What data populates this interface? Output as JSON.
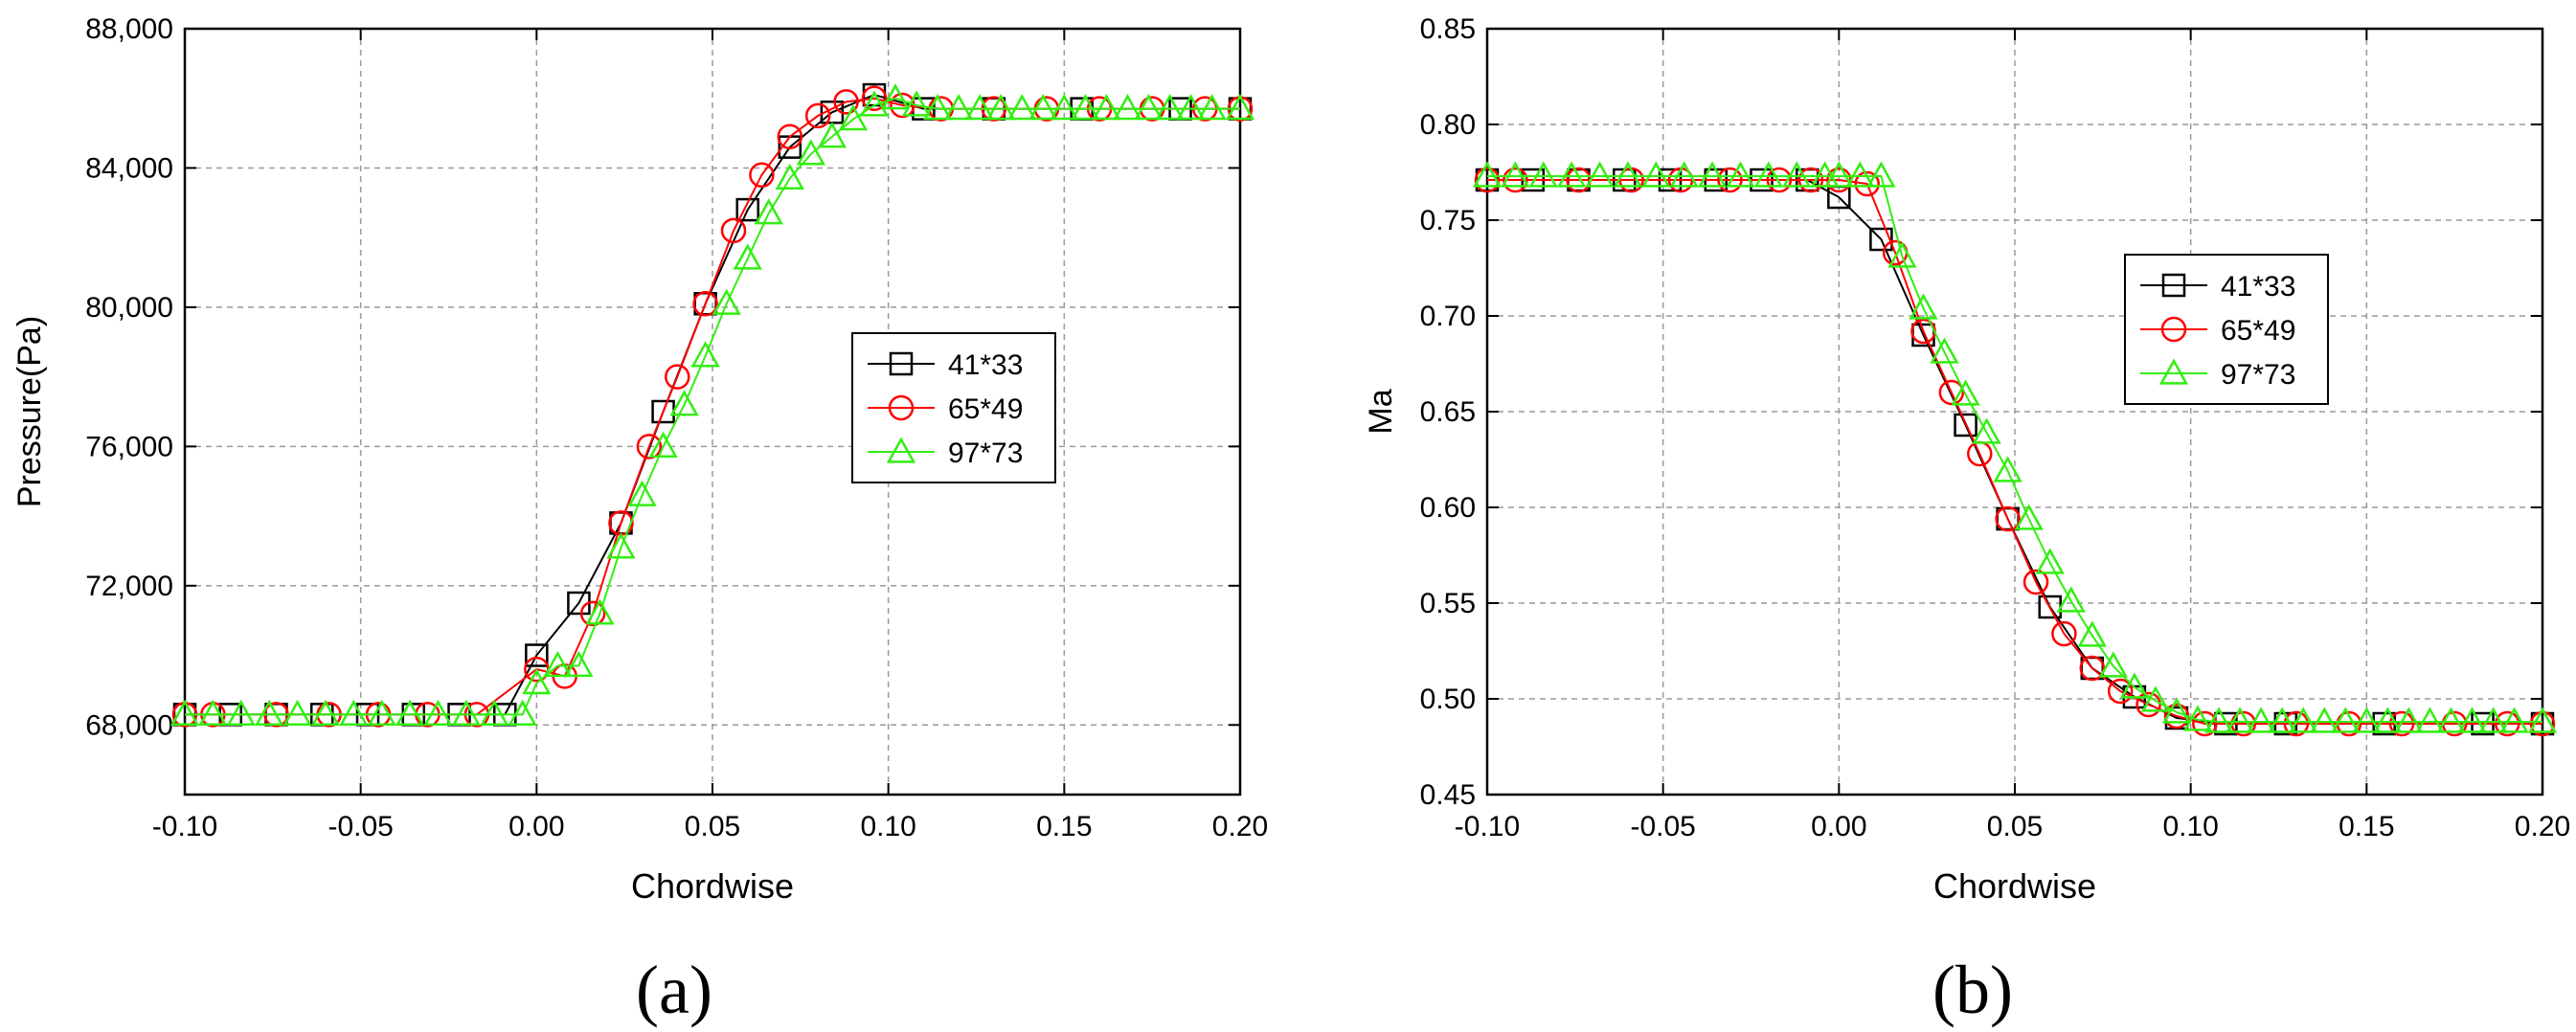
{
  "chart_data": [
    {
      "type": "line",
      "panel_label": "(a)",
      "xlabel": "Chordwise",
      "ylabel": "Pressure(Pa)",
      "xlim": [
        -0.1,
        0.2
      ],
      "ylim": [
        66000,
        88000
      ],
      "xticks": [
        "-0.10",
        "-0.05",
        "0.00",
        "0.05",
        "0.10",
        "0.15",
        "0.20"
      ],
      "yticks": [
        "68,000",
        "72,000",
        "76,000",
        "80,000",
        "84,000",
        "88,000"
      ],
      "ytick_values": [
        68000,
        72000,
        76000,
        80000,
        84000,
        88000
      ],
      "grid": true,
      "legend_position": "center-right",
      "series": [
        {
          "name": "41*33",
          "color": "#000000",
          "marker": "square",
          "x": [
            -0.1,
            -0.087,
            -0.074,
            -0.061,
            -0.048,
            -0.035,
            -0.022,
            -0.009,
            0.0,
            0.012,
            0.024,
            0.036,
            0.048,
            0.06,
            0.072,
            0.084,
            0.096,
            0.11,
            0.13,
            0.155,
            0.183,
            0.2
          ],
          "y": [
            68300,
            68300,
            68300,
            68300,
            68300,
            68300,
            68300,
            68300,
            70000,
            71500,
            73800,
            77000,
            80100,
            82800,
            84600,
            85600,
            86100,
            85700,
            85700,
            85700,
            85700,
            85700
          ]
        },
        {
          "name": "65*49",
          "color": "#ff0000",
          "marker": "circle",
          "x": [
            -0.1,
            -0.092,
            -0.074,
            -0.059,
            -0.045,
            -0.031,
            -0.017,
            0.0,
            0.008,
            0.016,
            0.024,
            0.032,
            0.04,
            0.048,
            0.056,
            0.064,
            0.072,
            0.08,
            0.088,
            0.096,
            0.104,
            0.115,
            0.13,
            0.145,
            0.16,
            0.175,
            0.19,
            0.2
          ],
          "y": [
            68300,
            68300,
            68300,
            68300,
            68300,
            68300,
            68300,
            69600,
            69400,
            71200,
            73800,
            76000,
            78000,
            80100,
            82200,
            83800,
            84900,
            85500,
            85900,
            86000,
            85800,
            85700,
            85700,
            85700,
            85700,
            85700,
            85700,
            85700
          ]
        },
        {
          "name": "97*73",
          "color": "#33ee11",
          "marker": "triangle",
          "x": [
            -0.1,
            -0.092,
            -0.084,
            -0.076,
            -0.068,
            -0.06,
            -0.052,
            -0.044,
            -0.036,
            -0.028,
            -0.02,
            -0.012,
            -0.004,
            0.0,
            0.006,
            0.012,
            0.018,
            0.024,
            0.03,
            0.036,
            0.042,
            0.048,
            0.054,
            0.06,
            0.066,
            0.072,
            0.078,
            0.084,
            0.09,
            0.096,
            0.102,
            0.108,
            0.114,
            0.12,
            0.126,
            0.132,
            0.138,
            0.144,
            0.15,
            0.156,
            0.162,
            0.168,
            0.174,
            0.18,
            0.186,
            0.192,
            0.2
          ],
          "y": [
            68300,
            68300,
            68300,
            68300,
            68300,
            68300,
            68300,
            68300,
            68300,
            68300,
            68300,
            68300,
            68300,
            69200,
            69700,
            69700,
            71200,
            73100,
            74600,
            76000,
            77200,
            78600,
            80100,
            81400,
            82700,
            83700,
            84400,
            84900,
            85400,
            85800,
            86000,
            85800,
            85700,
            85700,
            85700,
            85700,
            85700,
            85700,
            85700,
            85700,
            85700,
            85700,
            85700,
            85700,
            85700,
            85700,
            85700
          ]
        }
      ]
    },
    {
      "type": "line",
      "panel_label": "(b)",
      "xlabel": "Chordwise",
      "ylabel": "Ma",
      "xlim": [
        -0.1,
        0.2
      ],
      "ylim": [
        0.45,
        0.85
      ],
      "xticks": [
        "-0.10",
        "-0.05",
        "0.00",
        "0.05",
        "0.10",
        "0.15",
        "0.20"
      ],
      "yticks": [
        "0.45",
        "0.50",
        "0.55",
        "0.60",
        "0.65",
        "0.70",
        "0.75",
        "0.80",
        "0.85"
      ],
      "ytick_values": [
        0.45,
        0.5,
        0.55,
        0.6,
        0.65,
        0.7,
        0.75,
        0.8,
        0.85
      ],
      "grid": true,
      "legend_position": "upper-right",
      "series": [
        {
          "name": "41*33",
          "color": "#000000",
          "marker": "square",
          "x": [
            -0.1,
            -0.087,
            -0.074,
            -0.061,
            -0.048,
            -0.035,
            -0.022,
            -0.009,
            0.0,
            0.012,
            0.024,
            0.036,
            0.048,
            0.06,
            0.072,
            0.084,
            0.096,
            0.11,
            0.127,
            0.155,
            0.183,
            0.2
          ],
          "y": [
            0.771,
            0.771,
            0.771,
            0.771,
            0.771,
            0.771,
            0.771,
            0.771,
            0.762,
            0.74,
            0.69,
            0.643,
            0.594,
            0.548,
            0.516,
            0.501,
            0.49,
            0.487,
            0.487,
            0.487,
            0.487,
            0.487
          ]
        },
        {
          "name": "65*49",
          "color": "#ff0000",
          "marker": "circle",
          "x": [
            -0.1,
            -0.092,
            -0.074,
            -0.059,
            -0.045,
            -0.031,
            -0.017,
            -0.008,
            0.0,
            0.008,
            0.016,
            0.024,
            0.032,
            0.04,
            0.048,
            0.056,
            0.064,
            0.072,
            0.08,
            0.088,
            0.096,
            0.104,
            0.115,
            0.13,
            0.145,
            0.16,
            0.175,
            0.19,
            0.2
          ],
          "y": [
            0.771,
            0.771,
            0.771,
            0.771,
            0.771,
            0.771,
            0.771,
            0.771,
            0.771,
            0.769,
            0.733,
            0.692,
            0.66,
            0.628,
            0.594,
            0.561,
            0.534,
            0.516,
            0.504,
            0.497,
            0.491,
            0.487,
            0.487,
            0.487,
            0.487,
            0.487,
            0.487,
            0.487,
            0.487
          ]
        },
        {
          "name": "97*73",
          "color": "#33ee11",
          "marker": "triangle",
          "x": [
            -0.1,
            -0.092,
            -0.084,
            -0.076,
            -0.068,
            -0.06,
            -0.052,
            -0.044,
            -0.036,
            -0.028,
            -0.02,
            -0.012,
            -0.004,
            0.0,
            0.006,
            0.012,
            0.018,
            0.024,
            0.03,
            0.036,
            0.042,
            0.048,
            0.054,
            0.06,
            0.066,
            0.072,
            0.078,
            0.084,
            0.09,
            0.096,
            0.102,
            0.108,
            0.114,
            0.12,
            0.126,
            0.132,
            0.138,
            0.144,
            0.15,
            0.156,
            0.162,
            0.168,
            0.174,
            0.18,
            0.186,
            0.192,
            0.2
          ],
          "y": [
            0.773,
            0.773,
            0.773,
            0.773,
            0.773,
            0.773,
            0.773,
            0.773,
            0.773,
            0.773,
            0.773,
            0.773,
            0.773,
            0.773,
            0.773,
            0.773,
            0.731,
            0.704,
            0.681,
            0.659,
            0.639,
            0.619,
            0.594,
            0.571,
            0.551,
            0.533,
            0.517,
            0.506,
            0.499,
            0.493,
            0.489,
            0.488,
            0.488,
            0.488,
            0.488,
            0.488,
            0.488,
            0.488,
            0.488,
            0.488,
            0.488,
            0.488,
            0.488,
            0.488,
            0.488,
            0.488,
            0.488
          ]
        }
      ]
    }
  ]
}
